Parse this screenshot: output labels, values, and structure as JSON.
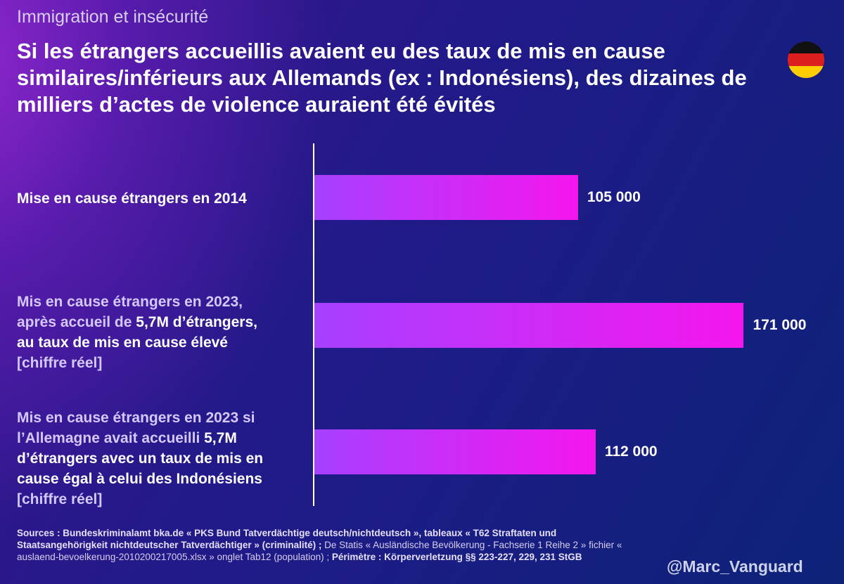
{
  "header": {
    "kicker": "Immigration et insécurité",
    "title": "Si les étrangers accueillis avaient eu des taux de mis en cause similaires/inférieurs aux Allemands (ex : Indonésiens), des dizaines de milliers d’actes de violence auraient été évités"
  },
  "flag": {
    "colors": [
      "#111111",
      "#dd1e1e",
      "#ffce00"
    ]
  },
  "chart_data": {
    "type": "bar",
    "orientation": "horizontal",
    "categories": [
      "Mise en cause étrangers en 2014",
      "Mis en cause étrangers en 2023, après accueil de 5,7M d’étrangers, au taux de mis en cause élevé [chiffre réel]",
      "Mis en cause étrangers en 2023 si l’Allemagne avait accueilli 5,7M d’étrangers avec un taux de mis en cause égal à celui des Indonésiens [chiffre réel]"
    ],
    "values": [
      105000,
      171000,
      112000
    ],
    "value_labels": [
      "105 000",
      "171 000",
      "112 000"
    ],
    "xlim": [
      0,
      200000
    ],
    "title": "",
    "xlabel": "",
    "ylabel": "",
    "label_lines": [
      [
        [
          {
            "text": "Mise en cause étrangers en 2014",
            "style": "strong"
          }
        ]
      ],
      [
        [
          {
            "text": "Mis en cause étrangers en 2023,",
            "style": "soft"
          }
        ],
        [
          {
            "text": "après accueil de ",
            "style": "soft"
          },
          {
            "text": "5,7M",
            "style": "strong"
          },
          {
            "text": " d’étrangers,",
            "style": "strong"
          }
        ],
        [
          {
            "text": "au taux de mis en cause élevé",
            "style": "strong"
          }
        ],
        [
          {
            "text": "[chiffre réel]",
            "style": "soft"
          }
        ]
      ],
      [
        [
          {
            "text": "Mis en cause étrangers en 2023 si",
            "style": "soft"
          }
        ],
        [
          {
            "text": "l’Allemagne avait accueilli ",
            "style": "soft"
          },
          {
            "text": "5,7M",
            "style": "strong"
          }
        ],
        [
          {
            "text": "d’étrangers avec un taux de mis en",
            "style": "strong"
          }
        ],
        [
          {
            "text": "cause égal à celui des Indonésiens",
            "style": "strong"
          }
        ],
        [
          {
            "text": "[chiffre réel]",
            "style": "soft"
          }
        ]
      ]
    ],
    "colors": {
      "bar_start": "#a640ff",
      "bar_end": "#f516ee"
    }
  },
  "footer": {
    "sources": [
      {
        "text": "Sources : Bundeskriminalamt bka.de « PKS Bund Tatverdächtige deutsch/nichtdeutsch », tableaux « T62 Straftaten und Staatsangehörigkeit nichtdeutscher Tatverdächtiger » (criminalité) ; ",
        "bold": true
      },
      {
        "text": "De Statis « Ausländische Bevölkerung - Fachserie 1 Reihe 2 » fichier « auslaend-bevoelkerung-2010200217005.xlsx » onglet Tab12 (population) ; ",
        "bold": false
      },
      {
        "text": "Périmètre : Körperverletzung §§ 223-227, 229, 231 StGB",
        "bold": true
      }
    ],
    "handle": "@Marc_Vanguard"
  }
}
